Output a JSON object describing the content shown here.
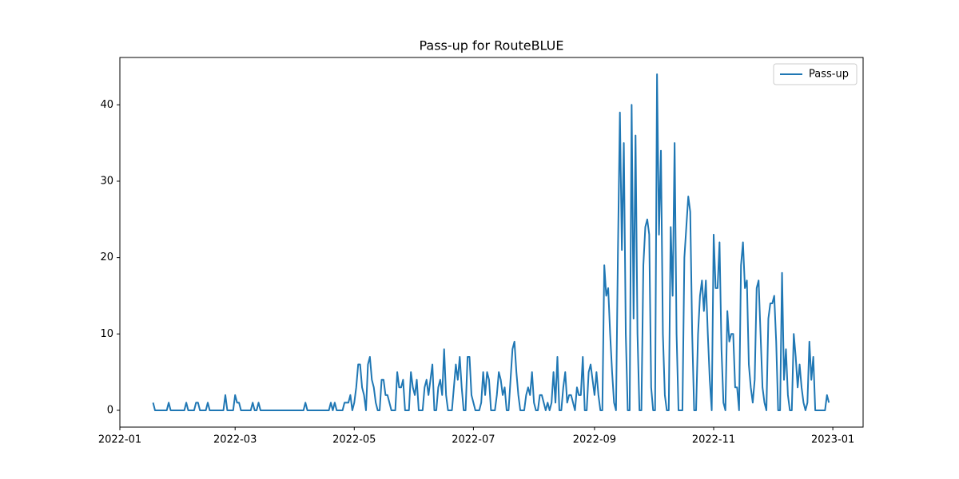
{
  "chart_data": {
    "type": "line",
    "title": "Pass-up for RouteBLUE",
    "x": [
      17,
      18,
      24,
      25,
      26,
      33,
      34,
      35,
      38,
      39,
      40,
      41,
      44,
      45,
      46,
      53,
      54,
      55,
      58,
      59,
      60,
      61,
      62,
      67,
      68,
      69,
      70,
      71,
      72,
      94,
      95,
      96,
      107,
      108,
      109,
      110,
      111,
      114,
      115,
      116,
      117,
      118,
      119,
      120,
      121,
      122,
      123,
      124,
      125,
      126,
      127,
      128,
      129,
      130,
      131,
      132,
      133,
      134,
      135,
      136,
      137,
      138,
      139,
      140,
      141,
      142,
      143,
      144,
      145,
      146,
      147,
      148,
      149,
      150,
      151,
      152,
      153,
      154,
      155,
      156,
      157,
      158,
      159,
      160,
      161,
      162,
      163,
      164,
      165,
      166,
      167,
      168,
      169,
      170,
      171,
      172,
      173,
      174,
      175,
      176,
      177,
      178,
      179,
      180,
      181,
      182,
      183,
      184,
      185,
      186,
      187,
      188,
      189,
      190,
      191,
      192,
      193,
      194,
      195,
      196,
      197,
      198,
      199,
      200,
      201,
      202,
      203,
      204,
      205,
      206,
      207,
      208,
      209,
      210,
      211,
      212,
      213,
      214,
      215,
      216,
      217,
      218,
      219,
      220,
      221,
      222,
      223,
      224,
      225,
      226,
      227,
      228,
      229,
      230,
      231,
      232,
      233,
      234,
      235,
      236,
      237,
      238,
      239,
      240,
      241,
      242,
      243,
      244,
      245,
      246,
      247,
      248,
      249,
      250,
      251,
      252,
      253,
      254,
      255,
      256,
      257,
      258,
      259,
      260,
      261,
      262,
      263,
      264,
      265,
      266,
      267,
      268,
      269,
      270,
      271,
      272,
      273,
      274,
      275,
      276,
      277,
      278,
      279,
      280,
      281,
      282,
      283,
      284,
      285,
      286,
      287,
      288,
      289,
      290,
      291,
      292,
      293,
      294,
      295,
      296,
      297,
      298,
      299,
      300,
      301,
      302,
      303,
      304,
      305,
      306,
      307,
      308,
      309,
      310,
      311,
      312,
      313,
      314,
      315,
      316,
      317,
      318,
      319,
      320,
      321,
      322,
      323,
      324,
      325,
      326,
      327,
      328,
      329,
      330,
      331,
      332,
      333,
      334,
      335,
      336,
      337,
      338,
      339,
      340,
      341,
      342,
      343,
      344,
      345,
      346,
      347,
      348,
      349,
      350,
      351,
      352,
      353,
      354,
      355,
      356,
      357,
      358,
      359,
      360,
      361,
      362,
      363
    ],
    "series": [
      {
        "name": "Pass-up",
        "color": "#1f77b4",
        "values": [
          1,
          0,
          0,
          1,
          0,
          0,
          1,
          0,
          0,
          1,
          1,
          0,
          0,
          1,
          0,
          0,
          2,
          0,
          0,
          2,
          1,
          1,
          0,
          0,
          1,
          0,
          0,
          1,
          0,
          0,
          1,
          0,
          0,
          1,
          0,
          1,
          0,
          0,
          1,
          1,
          1,
          2,
          0,
          1,
          3,
          6,
          6,
          3,
          2,
          0,
          6,
          7,
          4,
          3,
          1,
          0,
          0,
          4,
          4,
          2,
          2,
          1,
          0,
          0,
          0,
          5,
          3,
          3,
          4,
          0,
          0,
          0,
          5,
          3,
          2,
          4,
          0,
          0,
          0,
          3,
          4,
          2,
          4,
          6,
          0,
          0,
          3,
          4,
          2,
          8,
          2,
          0,
          0,
          0,
          3,
          6,
          4,
          7,
          3,
          0,
          0,
          7,
          7,
          2,
          1,
          0,
          0,
          0,
          1,
          5,
          2,
          5,
          4,
          0,
          0,
          0,
          2,
          5,
          4,
          2,
          3,
          0,
          0,
          4,
          8,
          9,
          5,
          2,
          0,
          0,
          0,
          2,
          3,
          2,
          5,
          1,
          0,
          0,
          2,
          2,
          1,
          0,
          1,
          0,
          1,
          5,
          1,
          7,
          0,
          0,
          3,
          5,
          1,
          2,
          2,
          1,
          0,
          3,
          2,
          2,
          7,
          0,
          0,
          5,
          6,
          4,
          2,
          5,
          2,
          0,
          0,
          19,
          15,
          16,
          10,
          5,
          1,
          0,
          21,
          39,
          21,
          35,
          10,
          0,
          0,
          40,
          12,
          36,
          10,
          0,
          0,
          19,
          24,
          25,
          23,
          3,
          0,
          0,
          44,
          23,
          34,
          10,
          2,
          0,
          0,
          24,
          15,
          35,
          10,
          0,
          0,
          0,
          20,
          24,
          28,
          26,
          10,
          0,
          0,
          10,
          15,
          17,
          13,
          17,
          10,
          4,
          0,
          23,
          16,
          16,
          22,
          8,
          1,
          0,
          13,
          9,
          10,
          10,
          3,
          3,
          0,
          19,
          22,
          16,
          17,
          6,
          3,
          1,
          4,
          16,
          17,
          10,
          3,
          1,
          0,
          12,
          14,
          14,
          15,
          9,
          0,
          0,
          18,
          4,
          8,
          2,
          0,
          0,
          10,
          7,
          3,
          6,
          3,
          1,
          0,
          1,
          9,
          4,
          7,
          0,
          0,
          0,
          0,
          0,
          0,
          2,
          1
        ]
      }
    ],
    "xlim": [
      0,
      380.5
    ],
    "ylim": [
      -2.2,
      46.2
    ],
    "xticks": [
      {
        "value": 0,
        "label": "2022-01"
      },
      {
        "value": 59,
        "label": "2022-03"
      },
      {
        "value": 120,
        "label": "2022-05"
      },
      {
        "value": 181,
        "label": "2022-07"
      },
      {
        "value": 243,
        "label": "2022-09"
      },
      {
        "value": 304,
        "label": "2022-11"
      },
      {
        "value": 365,
        "label": "2023-01"
      }
    ],
    "yticks": [
      0,
      10,
      20,
      30,
      40
    ],
    "legend": "upper right"
  }
}
